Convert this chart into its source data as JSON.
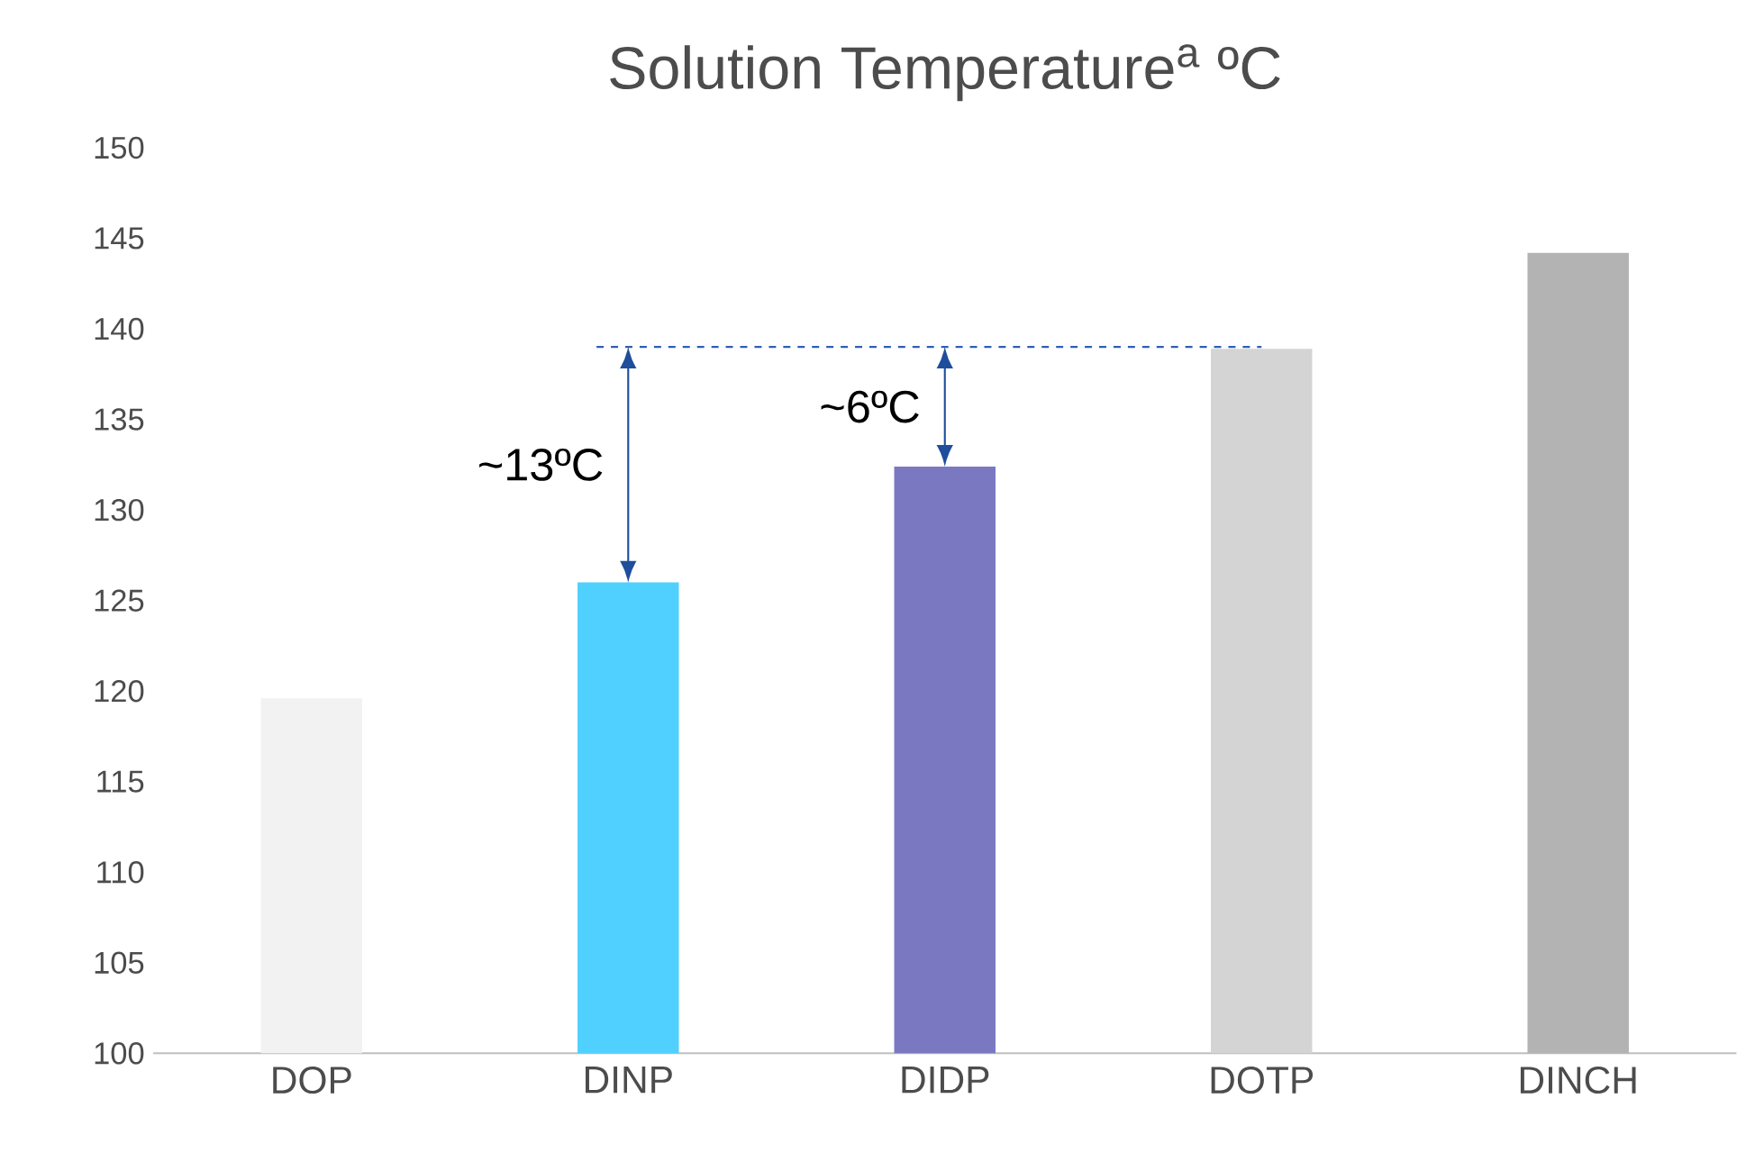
{
  "chart_data": {
    "type": "bar",
    "title": "Solution Temperature$^{a}$ ºC",
    "categories": [
      "DOP",
      "DINP",
      "DIDP",
      "DOTP",
      "DINCH"
    ],
    "values": [
      119.6,
      126.0,
      132.4,
      138.9,
      144.2
    ],
    "colors": [
      "#f2f2f2",
      "#4fd0ff",
      "#7b78c2",
      "#d4d4d4",
      "#b3b3b3"
    ],
    "ylim": [
      100,
      150
    ],
    "yticks": [
      100,
      105,
      110,
      115,
      120,
      125,
      130,
      135,
      140,
      145,
      150
    ],
    "grid": false,
    "ref_lines": [
      {
        "axis": "y",
        "value": 139,
        "color": "#2f5fb3",
        "line_style": "dashed"
      }
    ],
    "annotations": [
      "~13ºC",
      "~6ºC"
    ]
  }
}
